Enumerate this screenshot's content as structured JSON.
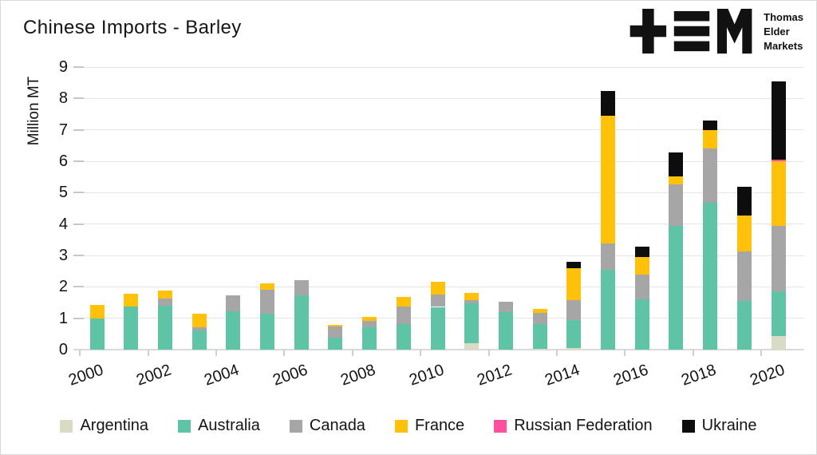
{
  "title": "Chinese Imports - Barley",
  "logo": {
    "line1": "Thomas",
    "line2": "Elder",
    "line3": "Markets"
  },
  "y_axis": {
    "title": "Million MT",
    "ticks": [
      0,
      1,
      2,
      3,
      4,
      5,
      6,
      7,
      8,
      9
    ],
    "max": 9
  },
  "x_axis": {
    "visible_tick_labels": [
      "2000",
      "2002",
      "2004",
      "2006",
      "2008",
      "2010",
      "2012",
      "2014",
      "2016",
      "2018",
      "2020"
    ]
  },
  "colors": {
    "grid": "#e4e4e4",
    "axis": "#d9d9d9",
    "text": "#141414"
  },
  "chart_data": {
    "type": "bar",
    "stacked": true,
    "title": "Chinese Imports - Barley",
    "xlabel": "",
    "ylabel": "Million MT",
    "ylim": [
      0,
      9
    ],
    "grid": "horizontal",
    "legend_position": "bottom",
    "categories": [
      "2000",
      "2001",
      "2002",
      "2003",
      "2004",
      "2005",
      "2006",
      "2007",
      "2008",
      "2009",
      "2010",
      "2011",
      "2012",
      "2013",
      "2014",
      "2015",
      "2016",
      "2017",
      "2018",
      "2019",
      "2020"
    ],
    "series": [
      {
        "name": "Argentina",
        "color": "#D9DBC4",
        "values": [
          0,
          0,
          0,
          0,
          0,
          0,
          0,
          0,
          0,
          0,
          0,
          0.2,
          0,
          0.03,
          0.06,
          0,
          0,
          0,
          0,
          0,
          0.42
        ]
      },
      {
        "name": "Australia",
        "color": "#5EC4A5",
        "values": [
          1.0,
          1.37,
          1.4,
          0.6,
          1.21,
          1.14,
          1.72,
          0.39,
          0.71,
          0.81,
          1.36,
          1.28,
          1.2,
          0.78,
          0.89,
          2.55,
          1.59,
          3.95,
          4.69,
          1.56,
          1.44
        ]
      },
      {
        "name": "Canada",
        "color": "#A6A6A6",
        "values": [
          0,
          0,
          0.22,
          0.1,
          0.53,
          0.76,
          0.48,
          0.35,
          0.2,
          0.56,
          0.4,
          0.1,
          0.33,
          0.35,
          0.63,
          0.82,
          0.8,
          1.32,
          1.71,
          1.56,
          2.09
        ]
      },
      {
        "name": "France",
        "color": "#FFC10A",
        "values": [
          0.43,
          0.4,
          0.25,
          0.44,
          0,
          0.2,
          0,
          0.05,
          0.13,
          0.3,
          0.4,
          0.23,
          0,
          0.13,
          1.01,
          4.08,
          0.56,
          0.24,
          0.58,
          1.16,
          2.04
        ]
      },
      {
        "name": "Russian Federation",
        "color": "#FF4F9E",
        "values": [
          0,
          0,
          0,
          0,
          0,
          0,
          0,
          0,
          0,
          0,
          0,
          0,
          0,
          0,
          0,
          0,
          0,
          0,
          0,
          0,
          0.05
        ]
      },
      {
        "name": "Ukraine",
        "color": "#0D0D0D",
        "values": [
          0,
          0,
          0,
          0,
          0,
          0,
          0,
          0,
          0,
          0,
          0,
          0,
          0,
          0,
          0.21,
          0.79,
          0.32,
          0.76,
          0.32,
          0.91,
          2.5
        ]
      }
    ]
  }
}
